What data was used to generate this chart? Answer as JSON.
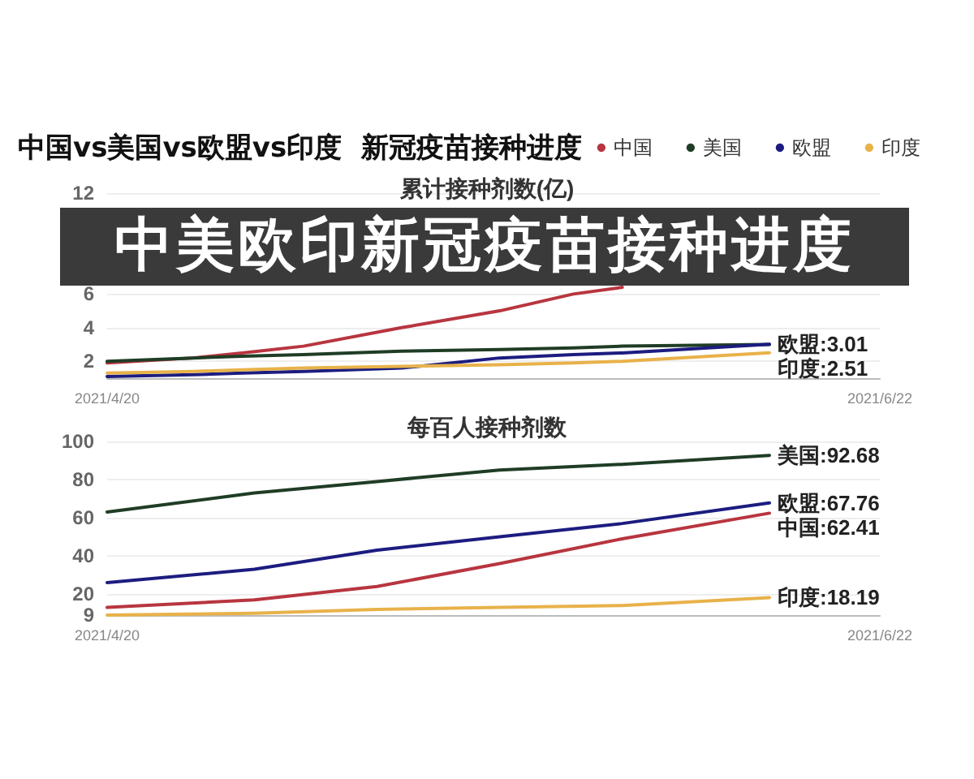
{
  "chart_data": [
    {
      "type": "line",
      "title": "中国vs美国vs欧盟vs印度  新冠疫苗接种进度",
      "subtitle": "累计接种剂数(亿)",
      "annotations": [
        "中美欧印新冠疫苗接种进度"
      ],
      "x": [
        "2021-04-20",
        "2021-04-27",
        "2021-05-01",
        "2021-05-06",
        "2021-05-14",
        "2021-05-22",
        "2021-05-28",
        "2021-06-01",
        "2021-06-13"
      ],
      "series": [
        {
          "name": "中国",
          "color": "#b8353f",
          "values": [
            1.9,
            2.2,
            2.5,
            2.9,
            4.0,
            5.0,
            6.0,
            6.4,
            null
          ]
        },
        {
          "name": "美国",
          "color": "#1f3d25",
          "values": [
            2.0,
            2.2,
            2.3,
            2.4,
            2.6,
            2.7,
            2.8,
            2.9,
            3.0
          ]
        },
        {
          "name": "欧盟",
          "color": "#1c1c80",
          "values": [
            1.1,
            1.2,
            1.3,
            1.4,
            1.6,
            2.2,
            2.4,
            2.5,
            3.01
          ],
          "value_labels": [
            null,
            null,
            null,
            null,
            null,
            null,
            null,
            null,
            "欧盟:3.01"
          ]
        },
        {
          "name": "印度",
          "color": "#e8b24a",
          "values": [
            1.3,
            1.4,
            1.5,
            1.6,
            1.7,
            1.8,
            1.9,
            2.0,
            2.51
          ],
          "value_labels": [
            null,
            null,
            null,
            null,
            null,
            null,
            null,
            null,
            "印度:2.51"
          ]
        }
      ],
      "xlim": [
        "2021-04-20",
        "2021-06-22"
      ],
      "xticks": [
        {
          "value": "2021-04-20",
          "label": "2021/4/20"
        },
        {
          "value": "2021-06-22",
          "label": "2021/6/22"
        }
      ],
      "ylim": [
        1,
        12
      ],
      "yticks": [
        2,
        4,
        6,
        12
      ],
      "grid": "y",
      "legend": "top right",
      "marker": "none"
    },
    {
      "type": "line",
      "title": "每百人接种剂数",
      "x": [
        "2021-04-20",
        "2021-05-02",
        "2021-05-12",
        "2021-05-22",
        "2021-06-01",
        "2021-06-13"
      ],
      "series": [
        {
          "color": "#b8353f",
          "values": [
            13,
            17,
            24,
            36,
            49,
            62.41
          ],
          "value_labels": [
            null,
            null,
            null,
            null,
            null,
            "中国:62.41"
          ]
        },
        {
          "color": "#1f3d25",
          "values": [
            63,
            73,
            79,
            85,
            88,
            92.68
          ],
          "value_labels": [
            null,
            null,
            null,
            null,
            null,
            "美国:92.68"
          ]
        },
        {
          "color": "#1c1c80",
          "values": [
            26,
            33,
            43,
            50,
            57,
            67.76
          ],
          "value_labels": [
            null,
            null,
            null,
            null,
            null,
            "欧盟:67.76"
          ]
        },
        {
          "color": "#e8b24a",
          "values": [
            9,
            10,
            12,
            13,
            14,
            18.19
          ],
          "value_labels": [
            null,
            null,
            null,
            null,
            null,
            "印度:18.19"
          ]
        }
      ],
      "xlim": [
        "2021-04-20",
        "2021-06-22"
      ],
      "xticks": [
        {
          "value": "2021-04-20",
          "label": "2021/4/20"
        },
        {
          "value": "2021-06-22",
          "label": "2021/6/22"
        }
      ],
      "ylim": [
        9,
        100
      ],
      "yticks": [
        9,
        20,
        40,
        60,
        80,
        100
      ],
      "grid": "y",
      "marker": "none"
    }
  ]
}
